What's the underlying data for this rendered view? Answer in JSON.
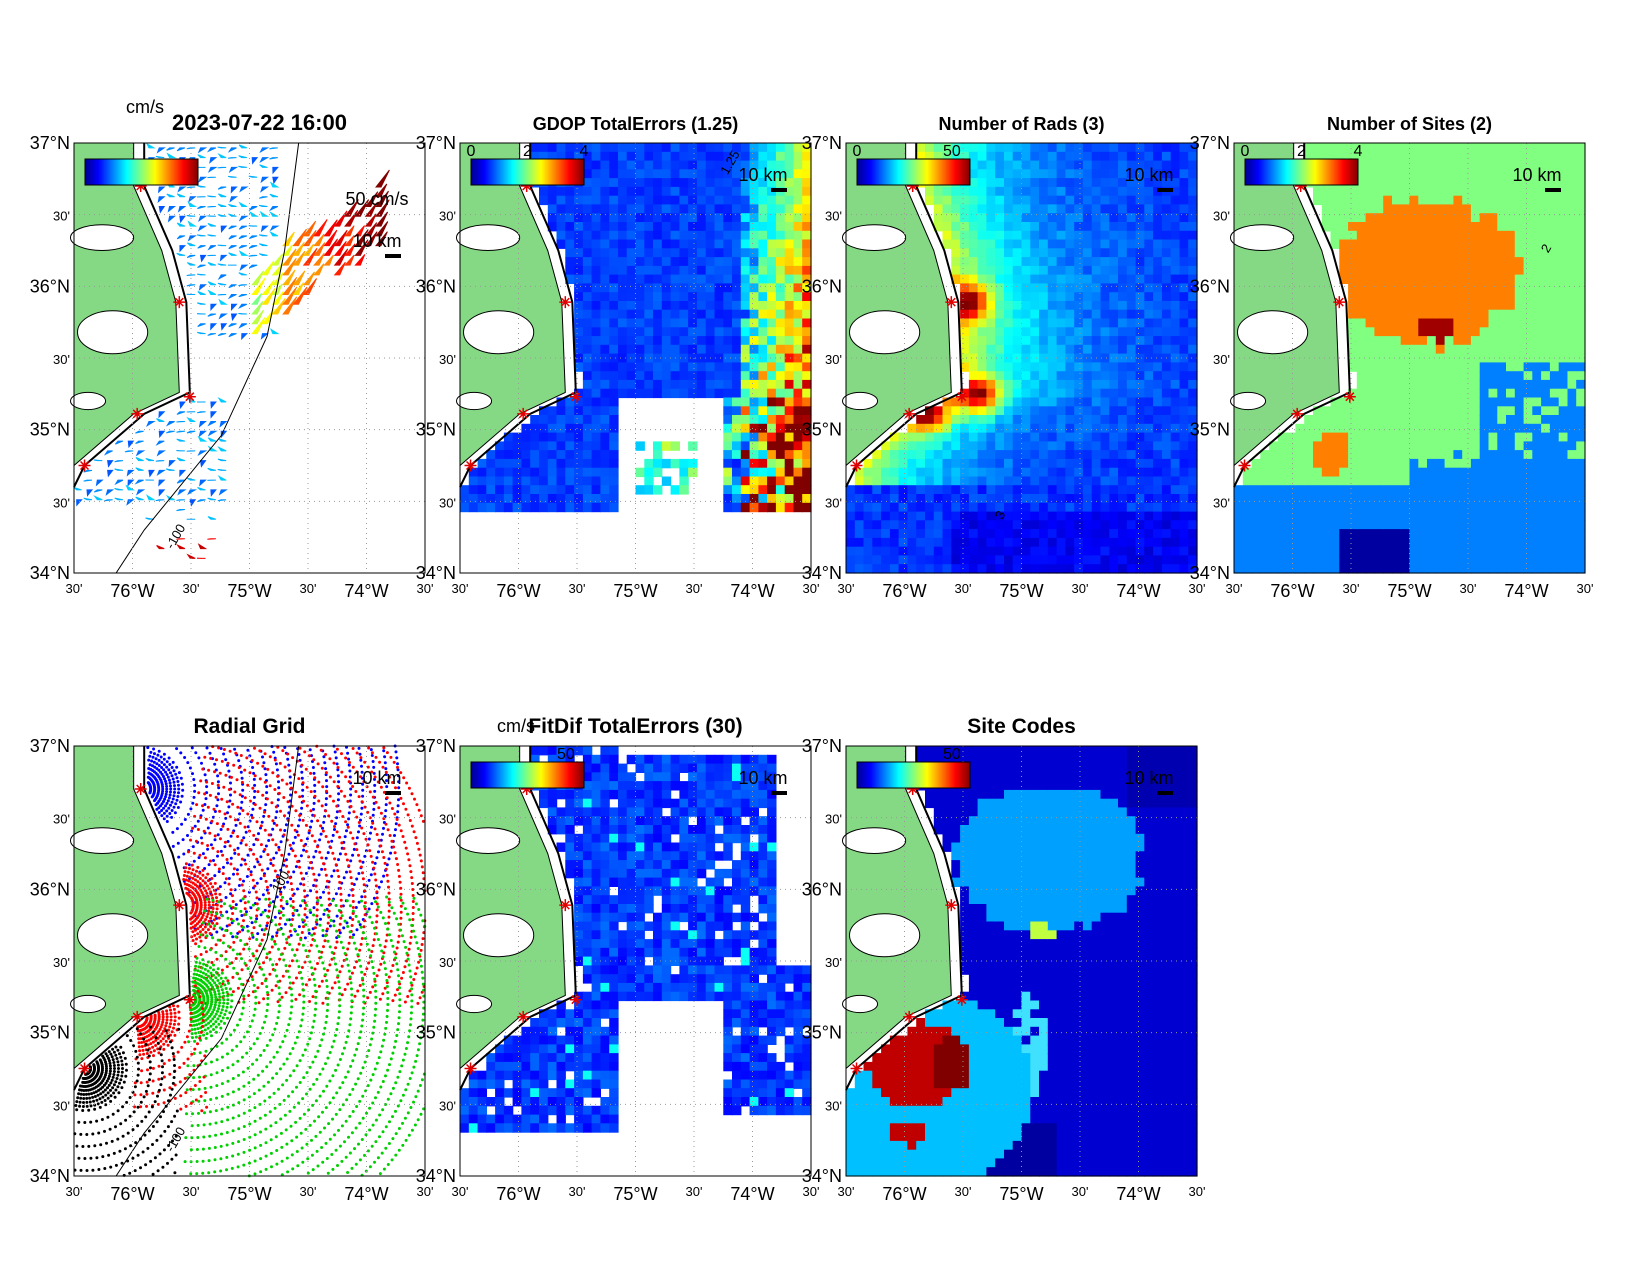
{
  "figure": {
    "axes": {
      "lat_labels": [
        "34°N",
        "30'",
        "35°N",
        "30'",
        "36°N",
        "30'",
        "37°N"
      ],
      "lon_labels": [
        "30'",
        "76°W",
        "30'",
        "75°W",
        "30'",
        "74°W",
        "30'"
      ]
    },
    "panels": [
      {
        "title": "2023-07-22 16:00",
        "colorbar": {
          "unit": "cm/s",
          "ticks": []
        },
        "scale_labels": [
          "50 cm/s",
          "10 km"
        ],
        "contour_labels": [
          "-100"
        ]
      },
      {
        "title": "GDOP TotalErrors (1.25)",
        "colorbar": {
          "ticks": [
            "0",
            "2",
            "4"
          ]
        },
        "scale_labels": [
          "10 km"
        ],
        "contour_labels": [
          "1.25"
        ]
      },
      {
        "title": "Number of Rads (3)",
        "colorbar": {
          "ticks": [
            "0",
            "50"
          ]
        },
        "scale_labels": [
          "10 km"
        ],
        "contour_labels": [
          "3"
        ]
      },
      {
        "title": "Number of Sites (2)",
        "colorbar": {
          "ticks": [
            "0",
            "2",
            "4"
          ]
        },
        "scale_labels": [
          "10 km"
        ],
        "contour_labels": [
          "2"
        ]
      },
      {
        "title": "Radial Grid",
        "scale_labels": [
          "10 km"
        ],
        "contour_labels": [
          "-100",
          "100"
        ]
      },
      {
        "title": "FitDif TotalErrors (30)",
        "colorbar": {
          "unit": "cm/s",
          "ticks": [
            "50"
          ]
        },
        "scale_labels": [
          "10 km"
        ],
        "contour_labels": []
      },
      {
        "title": "Site Codes",
        "colorbar": {
          "ticks": [
            "50"
          ]
        },
        "scale_labels": [
          "10 km"
        ],
        "contour_labels": []
      }
    ]
  }
}
